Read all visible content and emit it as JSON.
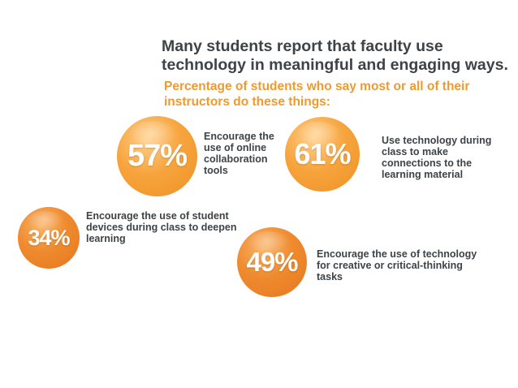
{
  "chart_data": {
    "type": "bubble-infographic",
    "title": "Many students report that faculty use technology in meaningful and engaging ways.",
    "subtitle": "Percentage of students who say most or all of their instructors do these things:",
    "items": [
      {
        "value": 57,
        "display": "57%",
        "label": "Encourage the use of online collaboration tools",
        "color": "#f4a03a"
      },
      {
        "value": 61,
        "display": "61%",
        "label": "Use technology during class to make connections to the learning material",
        "color": "#f4a03a"
      },
      {
        "value": 34,
        "display": "34%",
        "label": "Encourage the use of student devices during class to deepen learning",
        "color": "#eb8529"
      },
      {
        "value": 49,
        "display": "49%",
        "label": "Encourage the use of technology for creative or critical-thinking tasks",
        "color": "#eb8529"
      }
    ]
  }
}
